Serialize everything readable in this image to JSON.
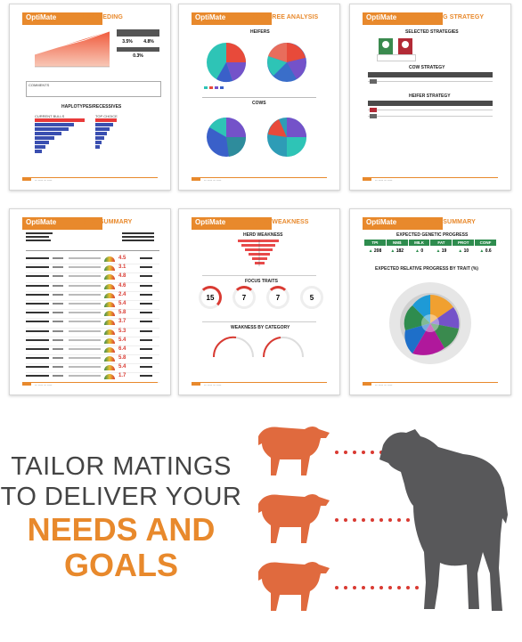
{
  "brand": {
    "logo_text": "OptiMate",
    "accent": "#e8892c",
    "dark_cow": "#58585a",
    "red": "#d93a32"
  },
  "reports": [
    {
      "title": "INBREEDING",
      "footer": "-- ---- -- ----",
      "comments_label": "COMMENTS",
      "section": "HAPLOTYPES/RECESSIVES",
      "values": [
        "3.5%",
        "4.8%",
        "0.3%"
      ],
      "sub_left": "CURRENT BULLS",
      "sub_right": "TOP CHOICE"
    },
    {
      "title": "PEDIGREE ANALYSIS",
      "footer": "-- ---- -- ----",
      "section_a": "HEIFERS",
      "section_b": "COWS"
    },
    {
      "title": "MATING STRATEGY",
      "footer": "-- ---- -- ----",
      "section_a": "SELECTED STRATEGIES",
      "section_b": "COW STRATEGY",
      "section_c": "HEIFER STRATEGY"
    },
    {
      "title": "SIRE SUMMARY",
      "footer": "-- ---- -- ----",
      "gauge_values": [
        "4.5",
        "3.1",
        "4.8",
        "4.6",
        "2.4",
        "5.4",
        "5.8",
        "3.7",
        "5.3",
        "5.4",
        "6.4",
        "5.8",
        "5.4",
        "1.7"
      ]
    },
    {
      "title": "HERD WEAKNESS",
      "footer": "-- ---- -- ----",
      "section_a": "HERD WEAKNESS",
      "section_b": "FOCUS TRAITS",
      "section_c": "WEAKNESS BY CATEGORY",
      "focus": [
        "15",
        "7",
        "7",
        "5"
      ]
    },
    {
      "title": "HERD SUMMARY",
      "footer": "-- ---- -- ----",
      "section_a": "EXPECTED GENETIC PROGRESS",
      "section_b": "EXPECTED RELATIVE PROGRESS BY TRAIT (%)",
      "traits": [
        "TPI",
        "NM$",
        "MILK",
        "FAT",
        "PROT",
        "CONF"
      ],
      "trait_values": [
        "208",
        "182",
        "0",
        "19",
        "10",
        "0.6"
      ]
    }
  ],
  "headline": {
    "line1": "TAILOR MATINGS",
    "line2": "TO DELIVER YOUR",
    "line3": "NEEDS AND",
    "line4": "GOALS"
  }
}
